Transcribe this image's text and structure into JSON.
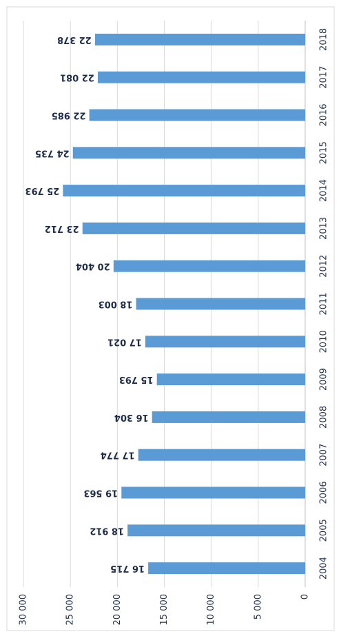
{
  "chart_data": {
    "type": "bar",
    "orientation": "horizontal",
    "categories": [
      "2004",
      "2005",
      "2006",
      "2007",
      "2008",
      "2009",
      "2010",
      "2011",
      "2012",
      "2013",
      "2014",
      "2015",
      "2016",
      "2017",
      "2018"
    ],
    "values": [
      16715,
      18912,
      19563,
      17774,
      16304,
      15793,
      17021,
      18003,
      20404,
      23712,
      25793,
      24735,
      22985,
      22081,
      22378
    ],
    "value_labels": [
      "16 715",
      "18 912",
      "19 563",
      "17 774",
      "16 304",
      "15 793",
      "17 021",
      "18 003",
      "20 404",
      "23 712",
      "25 793",
      "24 735",
      "22 985",
      "22 081",
      "22 378"
    ],
    "color": "#5b9bd5",
    "ylim": [
      0,
      30000
    ],
    "yticks": [
      0,
      {
        "value": 5000,
        "label": "5 000"
      },
      {
        "value": 10000,
        "label": "10 000"
      },
      {
        "value": 15000,
        "label": "15 000"
      },
      {
        "value": 20000,
        "label": "20 000"
      },
      {
        "value": 25000,
        "label": "25 000"
      },
      {
        "value": 30000,
        "label": "30 000"
      }
    ],
    "grid": true
  }
}
